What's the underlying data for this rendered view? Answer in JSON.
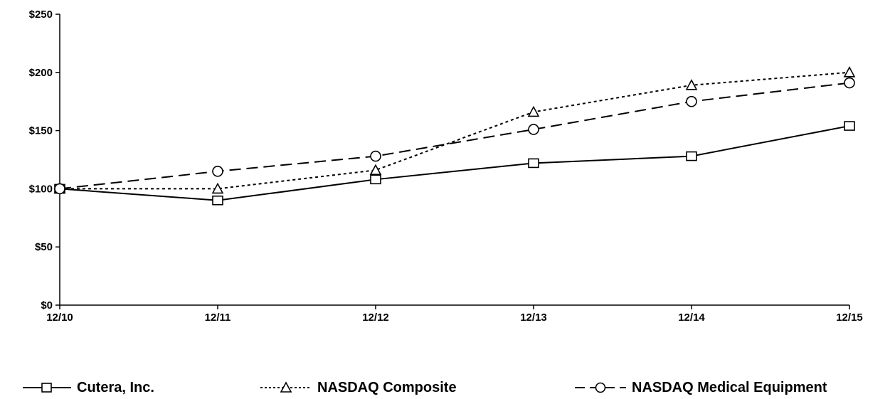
{
  "chart_data": {
    "type": "line",
    "categories": [
      "12/10",
      "12/11",
      "12/12",
      "12/13",
      "12/14",
      "12/15"
    ],
    "ylim": [
      0,
      250
    ],
    "yticks": [
      "$0",
      "$50",
      "$100",
      "$150",
      "$200",
      "$250"
    ],
    "ytick_values": [
      0,
      50,
      100,
      150,
      200,
      250
    ],
    "grid": false,
    "legend_position": "bottom",
    "series": [
      {
        "name": "Cutera, Inc.",
        "values": [
          100,
          90,
          108,
          122,
          128,
          154
        ],
        "marker": "square",
        "line_style": "solid",
        "color": "#000000"
      },
      {
        "name": "NASDAQ Composite",
        "values": [
          100,
          100,
          116,
          166,
          189,
          200
        ],
        "marker": "triangle",
        "line_style": "dotted",
        "color": "#000000"
      },
      {
        "name": "NASDAQ Medical Equipment",
        "values": [
          100,
          115,
          128,
          151,
          175,
          191
        ],
        "marker": "circle",
        "line_style": "dashed",
        "color": "#000000"
      }
    ]
  },
  "legend": {
    "items": [
      {
        "label": "Cutera, Inc.",
        "marker_icon": "square-marker-icon"
      },
      {
        "label": "NASDAQ Composite",
        "marker_icon": "triangle-marker-icon"
      },
      {
        "label": "NASDAQ Medical Equipment",
        "marker_icon": "circle-marker-icon"
      }
    ]
  }
}
